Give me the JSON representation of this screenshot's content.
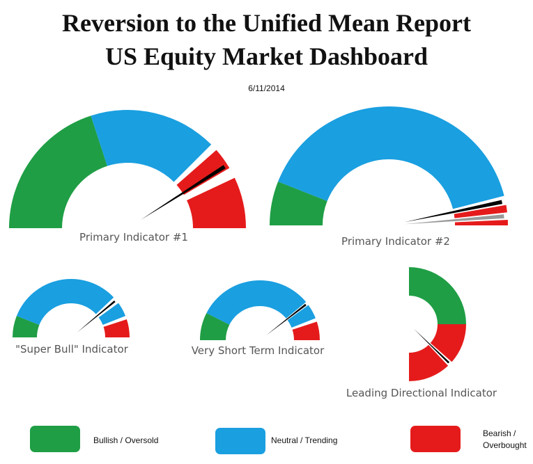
{
  "header": {
    "title_line1": "Reversion to the Unified Mean Report",
    "title_line2": "US Equity Market Dashboard",
    "date": "6/11/2014"
  },
  "colors": {
    "bullish": "#1f9e45",
    "neutral": "#1a9fe0",
    "bearish": "#e51b1b",
    "needle": "#000000",
    "needle_secondary": "#999999"
  },
  "chart_data": [
    {
      "type": "gauge",
      "label": "Primary Indicator #1",
      "segments": [
        {
          "zone": "bullish",
          "from": 0,
          "to": 0.4
        },
        {
          "zone": "neutral",
          "from": 0.4,
          "to": 0.75
        },
        {
          "zone": "bearish",
          "from": 0.77,
          "to": 0.83
        },
        {
          "zone": "bearish",
          "from": 0.86,
          "to": 1.0
        }
      ],
      "needles": [
        {
          "value": 0.82,
          "color": "needle"
        }
      ]
    },
    {
      "type": "gauge",
      "label": "Primary Indicator #2",
      "segments": [
        {
          "zone": "bullish",
          "from": 0,
          "to": 0.12
        },
        {
          "zone": "neutral",
          "from": 0.12,
          "to": 0.92
        },
        {
          "zone": "bearish",
          "from": 0.945,
          "to": 0.965
        },
        {
          "zone": "bearish",
          "from": 0.985,
          "to": 1.0
        }
      ],
      "needles": [
        {
          "value": 0.935,
          "color": "needle"
        },
        {
          "value": 0.975,
          "color": "needle_secondary"
        }
      ]
    },
    {
      "type": "gauge",
      "label": "\"Super Bull\"  Indicator",
      "segments": [
        {
          "zone": "bullish",
          "from": 0,
          "to": 0.12
        },
        {
          "zone": "neutral",
          "from": 0.12,
          "to": 0.76
        },
        {
          "zone": "neutral",
          "from": 0.8,
          "to": 0.88
        },
        {
          "zone": "bearish",
          "from": 0.9,
          "to": 1.0
        }
      ],
      "needles": [
        {
          "value": 0.78,
          "color": "needle"
        }
      ]
    },
    {
      "type": "gauge",
      "label": "Very Short Term  Indicator",
      "segments": [
        {
          "zone": "bullish",
          "from": 0,
          "to": 0.15
        },
        {
          "zone": "neutral",
          "from": 0.15,
          "to": 0.78
        },
        {
          "zone": "neutral",
          "from": 0.8,
          "to": 0.88
        },
        {
          "zone": "bearish",
          "from": 0.9,
          "to": 1.0
        }
      ],
      "needles": [
        {
          "value": 0.79,
          "color": "needle"
        }
      ]
    },
    {
      "type": "gauge",
      "label": "Leading Directional Indicator",
      "segments": [
        {
          "zone": "bullish",
          "from": 0,
          "to": 0.5
        },
        {
          "zone": "bearish",
          "from": 0.5,
          "to": 0.73
        },
        {
          "zone": "bearish",
          "from": 0.76,
          "to": 1.0
        }
      ],
      "needles": [
        {
          "value": 0.745,
          "color": "needle"
        }
      ]
    }
  ],
  "legend": [
    {
      "zone": "bullish",
      "label": "Bullish / Oversold"
    },
    {
      "zone": "neutral",
      "label": "Neutral / Trending"
    },
    {
      "zone": "bearish",
      "label_line1": "Bearish /",
      "label_line2": "Overbought"
    }
  ]
}
